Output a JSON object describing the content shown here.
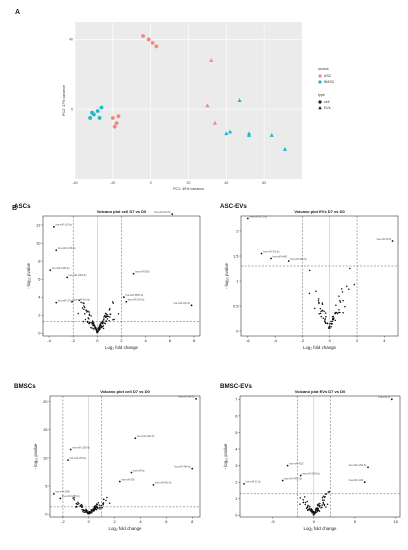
{
  "figure": {
    "panel_a_letter": "A",
    "panel_b_letter": "B"
  },
  "chart_data": [
    {
      "type": "scatter",
      "panel": "A",
      "title": "",
      "xlabel": "PC1: 49% variance",
      "ylabel": "PC2: 17% variance",
      "xlim": [
        -40,
        80
      ],
      "ylim": [
        -40,
        50
      ],
      "xticks": [
        -40,
        -20,
        0,
        20,
        40,
        60
      ],
      "yticks": [
        0,
        40
      ],
      "grid": true,
      "legend_position": "right",
      "legend": {
        "source_title": "source",
        "source_items": [
          {
            "name": "ASC",
            "color": "#f08a80"
          },
          {
            "name": "BMSC",
            "color": "#1fb8c9"
          }
        ],
        "type_title": "type",
        "type_items": [
          {
            "name": "cell",
            "shape": "circle"
          },
          {
            "name": "EVs",
            "shape": "triangle"
          }
        ]
      },
      "points": [
        {
          "x": -4,
          "y": 42,
          "source": "ASC",
          "type": "cell"
        },
        {
          "x": -1,
          "y": 40,
          "source": "ASC",
          "type": "cell"
        },
        {
          "x": 1,
          "y": 38,
          "source": "ASC",
          "type": "cell"
        },
        {
          "x": 3,
          "y": 36,
          "source": "ASC",
          "type": "cell"
        },
        {
          "x": -20,
          "y": -5,
          "source": "ASC",
          "type": "cell"
        },
        {
          "x": -18,
          "y": -8,
          "source": "ASC",
          "type": "cell"
        },
        {
          "x": -17,
          "y": -4,
          "source": "ASC",
          "type": "cell"
        },
        {
          "x": -19,
          "y": -10,
          "source": "ASC",
          "type": "cell"
        },
        {
          "x": 32,
          "y": 28,
          "source": "ASC",
          "type": "EVs"
        },
        {
          "x": 30,
          "y": 2,
          "source": "ASC",
          "type": "EVs"
        },
        {
          "x": 34,
          "y": -8,
          "source": "ASC",
          "type": "EVs"
        },
        {
          "x": -32,
          "y": -5,
          "source": "BMSC",
          "type": "cell"
        },
        {
          "x": -30,
          "y": -3,
          "source": "BMSC",
          "type": "cell"
        },
        {
          "x": -28,
          "y": -1,
          "source": "BMSC",
          "type": "cell"
        },
        {
          "x": -27,
          "y": -5,
          "source": "BMSC",
          "type": "cell"
        },
        {
          "x": -31,
          "y": -2,
          "source": "BMSC",
          "type": "cell"
        },
        {
          "x": -26,
          "y": 1,
          "source": "BMSC",
          "type": "cell"
        },
        {
          "x": 47,
          "y": 5,
          "source": "BMSC",
          "type": "EVs"
        },
        {
          "x": 42,
          "y": -13,
          "source": "BMSC",
          "type": "EVs"
        },
        {
          "x": 40,
          "y": -14,
          "source": "BMSC",
          "type": "EVs"
        },
        {
          "x": 52,
          "y": -14,
          "source": "BMSC",
          "type": "EVs"
        },
        {
          "x": 64,
          "y": -15,
          "source": "BMSC",
          "type": "EVs"
        },
        {
          "x": 71,
          "y": -23,
          "source": "BMSC",
          "type": "EVs"
        },
        {
          "x": 52,
          "y": -15,
          "source": "BMSC",
          "type": "EVs"
        }
      ]
    },
    {
      "type": "scatter",
      "panel_title": "ASCs",
      "title": "Volcano plot cell D7 vs D0",
      "xlabel": "Log₂ fold change",
      "ylabel": "- log₁₀ pvalue",
      "xlim": [
        -4.5,
        8.5
      ],
      "ylim": [
        -0.3,
        13
      ],
      "xticks": [
        -4,
        -2,
        0,
        2,
        4,
        6,
        8
      ],
      "yticks": [
        0,
        2,
        4,
        6,
        8,
        10,
        12
      ],
      "vlines": [
        -2,
        2
      ],
      "hline": 1.3,
      "zero_line": 0,
      "seed": 11,
      "cloud": {
        "count": 130,
        "spread_x": 1.4,
        "max_y": 3.2
      },
      "labelled_points": [
        {
          "x": 6.2,
          "y": 13.2,
          "label": "hsa-miR-543-5p"
        },
        {
          "x": -3.6,
          "y": 11.8,
          "label": "hsa-miR-130-3p"
        },
        {
          "x": -3.4,
          "y": 9.2,
          "label": "hsa-miR-1226-5p"
        },
        {
          "x": -3.9,
          "y": 7.0,
          "label": "hsa-miR-193b-3p"
        },
        {
          "x": -2.5,
          "y": 6.2,
          "label": "hsa-miR-196a-5p"
        },
        {
          "x": 3.0,
          "y": 6.6,
          "label": "hsa-miR-5095"
        },
        {
          "x": -3.4,
          "y": 3.4,
          "label": "hsa-miR-370-3p"
        },
        {
          "x": -2.1,
          "y": 3.5,
          "label": "hsa-miR-34c-5p"
        },
        {
          "x": 2.2,
          "y": 4.0,
          "label": "hsa-miR-5585-3p"
        },
        {
          "x": 2.4,
          "y": 3.5,
          "label": "hsa-miR-224-5p"
        },
        {
          "x": 7.8,
          "y": 3.1,
          "label": "hsa-miR-10b-3p"
        }
      ]
    },
    {
      "type": "scatter",
      "panel_title": "ASC-EVs",
      "title": "Volcano plot EVs D7 vs D0",
      "xlabel": "Log₂ fold change",
      "ylabel": "- log₁₀ pvalue",
      "xlim": [
        -6.5,
        5
      ],
      "ylim": [
        -0.1,
        2.3
      ],
      "xticks": [
        -6,
        -4,
        -2,
        0,
        2,
        4
      ],
      "yticks": [
        0,
        0.5,
        1,
        1.5,
        2
      ],
      "vlines": [
        -2,
        2
      ],
      "hline": 1.3,
      "zero_line": 0,
      "seed": 23,
      "cloud": {
        "count": 70,
        "spread_x": 1.6,
        "max_y": 1.1
      },
      "labelled_points": [
        {
          "x": -6.0,
          "y": 2.25,
          "label": "hsa-miR-1271-5p"
        },
        {
          "x": 4.6,
          "y": 1.8,
          "label": "hsa-miR-3182"
        },
        {
          "x": -5.0,
          "y": 1.55,
          "label": "hsa-miR-412-5p"
        },
        {
          "x": -3.0,
          "y": 1.4,
          "label": "hsa-miR-584-5p"
        },
        {
          "x": -4.3,
          "y": 1.45,
          "label": "hsa-miR-4486"
        }
      ]
    },
    {
      "type": "scatter",
      "panel_title": "BMSCs",
      "title": "Volcano plot cell D7 vs D0",
      "xlabel": "Log₂ fold change",
      "ylabel": "- log₁₀ pvalue",
      "xlim": [
        -3,
        8.6
      ],
      "ylim": [
        -0.5,
        21
      ],
      "xticks": [
        -2,
        0,
        2,
        4,
        6,
        8
      ],
      "yticks": [
        0,
        5,
        10,
        15,
        20
      ],
      "vlines": [
        -2,
        1
      ],
      "hline": 1.3,
      "zero_line": 0,
      "seed": 37,
      "cloud": {
        "count": 110,
        "spread_x": 1.3,
        "max_y": 2.6
      },
      "labelled_points": [
        {
          "x": 8.3,
          "y": 20.5,
          "label": "hsa-miR-142-5p"
        },
        {
          "x": 3.6,
          "y": 13.5,
          "label": "hsa-miR-199b-5p"
        },
        {
          "x": -1.4,
          "y": 11.5,
          "label": "hsa-miR-1290-5p"
        },
        {
          "x": -1.6,
          "y": 9.6,
          "label": "hsa-miR-155-5p"
        },
        {
          "x": 8.0,
          "y": 8.1,
          "label": "hsa-miR-484-3p"
        },
        {
          "x": 3.3,
          "y": 7.4,
          "label": "hsa-miR-3p"
        },
        {
          "x": 2.4,
          "y": 5.8,
          "label": "hsa-miR-509"
        },
        {
          "x": 5.0,
          "y": 5.2,
          "label": "hsa-miR-491-5p"
        },
        {
          "x": -2.7,
          "y": 3.6,
          "label": "hsa-miR-5999"
        },
        {
          "x": -2.2,
          "y": 2.8,
          "label": "hsa-miR-4485-3p"
        }
      ]
    },
    {
      "type": "scatter",
      "panel_title": "BMSC-EVs",
      "title": "Volcano plot EVs D7 vs D0",
      "xlabel": "Log₂ fold change",
      "ylabel": "- log₁₀ pvalue",
      "xlim": [
        -9,
        10.5
      ],
      "ylim": [
        -0.1,
        7.2
      ],
      "xticks": [
        -5,
        0,
        5,
        10
      ],
      "yticks": [
        0,
        1,
        2,
        3,
        4,
        5,
        6,
        7
      ],
      "vlines": [
        -2,
        2
      ],
      "hline": 1.3,
      "zero_line": 0,
      "seed": 53,
      "cloud": {
        "count": 100,
        "spread_x": 1.7,
        "max_y": 1.3
      },
      "labelled_points": [
        {
          "x": 9.5,
          "y": 7.0,
          "label": "hsa-miR-31"
        },
        {
          "x": -3.2,
          "y": 3.0,
          "label": "hsa-miR-4525"
        },
        {
          "x": -1.6,
          "y": 2.4,
          "label": "hsa-miR-2546-5p"
        },
        {
          "x": -3.8,
          "y": 2.1,
          "label": "hsa-miR-4492-5p"
        },
        {
          "x": -8.5,
          "y": 1.9,
          "label": "hsa-miR-31-5p"
        },
        {
          "x": 6.6,
          "y": 2.9,
          "label": "hsa-miR-125a-5p"
        },
        {
          "x": 6.2,
          "y": 2.0,
          "label": "hsa-miR-4440"
        }
      ]
    }
  ]
}
